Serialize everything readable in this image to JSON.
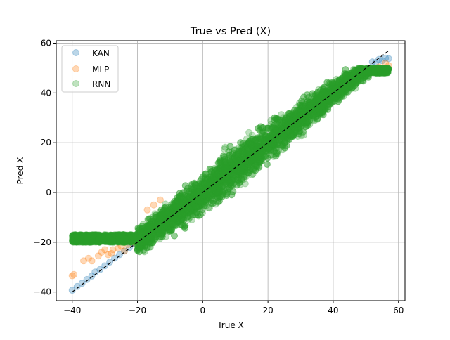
{
  "chart_data": {
    "type": "scatter",
    "title": "True vs Pred (X)",
    "xlabel": "True X",
    "ylabel": "Pred X",
    "xlim": [
      -44.9,
      62.0
    ],
    "ylim": [
      -43.5,
      61.0
    ],
    "xticks": [
      -40,
      -20,
      0,
      20,
      40,
      60
    ],
    "yticks": [
      -40,
      -20,
      0,
      20,
      40,
      60
    ],
    "xtick_labels": [
      "−40",
      "−20",
      "0",
      "20",
      "40",
      "60"
    ],
    "ytick_labels": [
      "−40",
      "−20",
      "0",
      "20",
      "40",
      "60"
    ],
    "grid": true,
    "legend_position": "top-left",
    "reference_line": {
      "style": "dashed",
      "color": "#000000",
      "x": [
        -40,
        57
      ],
      "y": [
        -40,
        57
      ]
    },
    "series": [
      {
        "name": "KAN",
        "color": "#1f77b4",
        "alpha": 0.3,
        "points": [
          [
            -40,
            -39.3
          ],
          [
            -38.5,
            -37.8
          ],
          [
            -37,
            -36.5
          ],
          [
            -35.5,
            -35
          ],
          [
            -34,
            -33.6
          ],
          [
            -33,
            -32
          ],
          [
            -31.5,
            -31
          ],
          [
            -30,
            -29.5
          ],
          [
            -28.5,
            -28
          ],
          [
            -27,
            -26.4
          ],
          [
            -25.5,
            -25
          ],
          [
            -24,
            -23.5
          ],
          [
            -22.5,
            -22.2
          ],
          [
            -21,
            -20.5
          ],
          [
            -20,
            -19.4
          ],
          [
            -19,
            -18.5
          ],
          [
            52,
            52.5
          ],
          [
            54,
            53.5
          ],
          [
            55,
            53
          ],
          [
            56,
            54
          ],
          [
            57,
            53.8
          ],
          [
            53,
            52
          ]
        ]
      },
      {
        "name": "MLP",
        "color": "#ff7f0e",
        "alpha": 0.3,
        "points": [
          [
            -40,
            -33.5
          ],
          [
            -39.5,
            -33
          ],
          [
            -36.5,
            -27.5
          ],
          [
            -35,
            -26.5
          ],
          [
            -34,
            -27.5
          ],
          [
            -32,
            -25.5
          ],
          [
            -31,
            -24
          ],
          [
            -30,
            -23
          ],
          [
            -29,
            -25
          ],
          [
            -28,
            -24.5
          ],
          [
            -27.5,
            -23
          ],
          [
            -26,
            -22.5
          ],
          [
            -25,
            -21.5
          ],
          [
            -24,
            -23.5
          ],
          [
            -23,
            -21
          ],
          [
            -21,
            -20
          ],
          [
            -19,
            -18.5
          ],
          [
            -17,
            -7
          ],
          [
            -15,
            -5
          ],
          [
            -13,
            -3
          ],
          [
            55,
            50
          ],
          [
            56,
            52
          ],
          [
            57,
            51
          ],
          [
            54,
            50.5
          ],
          [
            53,
            49
          ]
        ]
      },
      {
        "name": "RNN",
        "color": "#2ca02c",
        "alpha": 0.3,
        "band": {
          "x_start": -40,
          "x_end": 57,
          "half_width_center": 12,
          "half_width_edge": 4,
          "density": 6000
        }
      }
    ]
  }
}
